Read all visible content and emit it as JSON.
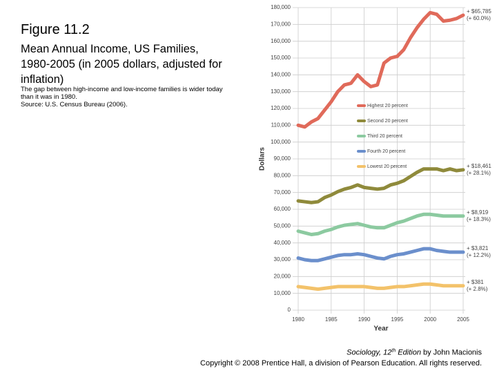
{
  "chart_data": {
    "type": "line",
    "title": "Figure 11.2",
    "subtitle": "Mean Annual Income, US Families, 1980-2005 (in 2005 dollars, adjusted for inflation)",
    "note": "The gap between high-income and low-income families is wider today than it was in 1980.",
    "source": "Source: U.S. Census Bureau (2006).",
    "y_label": "Dollars",
    "x_label": "Year",
    "x": [
      1980,
      1981,
      1982,
      1983,
      1984,
      1985,
      1986,
      1987,
      1988,
      1989,
      1990,
      1991,
      1992,
      1993,
      1994,
      1995,
      1996,
      1997,
      1998,
      1999,
      2000,
      2001,
      2002,
      2003,
      2004,
      2005
    ],
    "xlim": [
      1980,
      2005
    ],
    "xticks": [
      1980,
      1985,
      1990,
      1995,
      2000,
      2005
    ],
    "ylim": [
      0,
      180000
    ],
    "yticks": [
      0,
      {
        "value": 10000,
        "label": "10,000"
      },
      {
        "value": 20000,
        "label": "20,000"
      },
      {
        "value": 30000,
        "label": "30,000"
      },
      {
        "value": 40000,
        "label": "40,000"
      },
      {
        "value": 50000,
        "label": "50,000"
      },
      {
        "value": 60000,
        "label": "60,000"
      },
      {
        "value": 70000,
        "label": "70,000"
      },
      {
        "value": 80000,
        "label": "80,000"
      },
      {
        "value": 90000,
        "label": "90,000"
      },
      {
        "value": 100000,
        "label": "100,000"
      },
      {
        "value": 110000,
        "label": "110,000"
      },
      {
        "value": 120000,
        "label": "120,000"
      },
      {
        "value": 130000,
        "label": "130,000"
      },
      {
        "value": 140000,
        "label": "140,000"
      },
      {
        "value": 150000,
        "label": "150,000"
      },
      {
        "value": 160000,
        "label": "160,000"
      },
      {
        "value": 170000,
        "label": "170,000"
      },
      {
        "value": 180000,
        "label": "180,000"
      }
    ],
    "grid": true,
    "series": [
      {
        "name": "Highest 20 percent",
        "color": "#e06a5a",
        "change": "+ $65,785",
        "change_pct": "(+ 60.0%)",
        "values": [
          110000,
          109000,
          112000,
          114000,
          119000,
          124000,
          130000,
          134000,
          135000,
          140000,
          136000,
          133000,
          134000,
          147000,
          150000,
          151000,
          155000,
          162000,
          168000,
          173000,
          177000,
          176000,
          172000,
          172500,
          173500,
          175500
        ]
      },
      {
        "name": "Second 20 percent",
        "color": "#8f8a3b",
        "change": "+ $18,461",
        "change_pct": "(+ 28.1%)",
        "values": [
          65000,
          64500,
          64000,
          64500,
          67000,
          68500,
          70500,
          72000,
          73000,
          74500,
          73000,
          72500,
          72000,
          72500,
          74500,
          75500,
          77000,
          79500,
          82000,
          84000,
          84000,
          84000,
          83000,
          84000,
          83000,
          83500
        ]
      },
      {
        "name": "Third 20 percent",
        "color": "#8ccaa0",
        "change": "+ $8,919",
        "change_pct": "(+ 18.3%)",
        "values": [
          47000,
          46000,
          45000,
          45500,
          47000,
          48000,
          49500,
          50500,
          51000,
          51500,
          50500,
          49500,
          49000,
          49000,
          50500,
          52000,
          53000,
          54500,
          56000,
          57000,
          57000,
          56500,
          56000,
          56000,
          56000,
          56000
        ]
      },
      {
        "name": "Fourth 20 percent",
        "color": "#6b8fcc",
        "change": "+ $3,821",
        "change_pct": "(+ 12.2%)",
        "values": [
          31000,
          30000,
          29500,
          29500,
          30500,
          31500,
          32500,
          33000,
          33000,
          33500,
          33000,
          32000,
          31000,
          30500,
          32000,
          33000,
          33500,
          34500,
          35500,
          36500,
          36500,
          35500,
          35000,
          34500,
          34500,
          34500
        ]
      },
      {
        "name": "Lowest 20 percent",
        "color": "#f3c26a",
        "change": "+ $381",
        "change_pct": "(+ 2.8%)",
        "values": [
          14000,
          13500,
          13000,
          12500,
          13000,
          13500,
          14000,
          14000,
          14000,
          14000,
          14000,
          13500,
          13000,
          13000,
          13500,
          14000,
          14000,
          14500,
          15000,
          15500,
          15500,
          15000,
          14500,
          14500,
          14500,
          14500
        ]
      }
    ]
  },
  "footer": {
    "credit": [
      "Sociology, 12",
      "th",
      " Edition",
      " by John Macionis"
    ],
    "copyright": "Copyright © 2008 Prentice Hall, a division of Pearson Education. All rights reserved."
  }
}
